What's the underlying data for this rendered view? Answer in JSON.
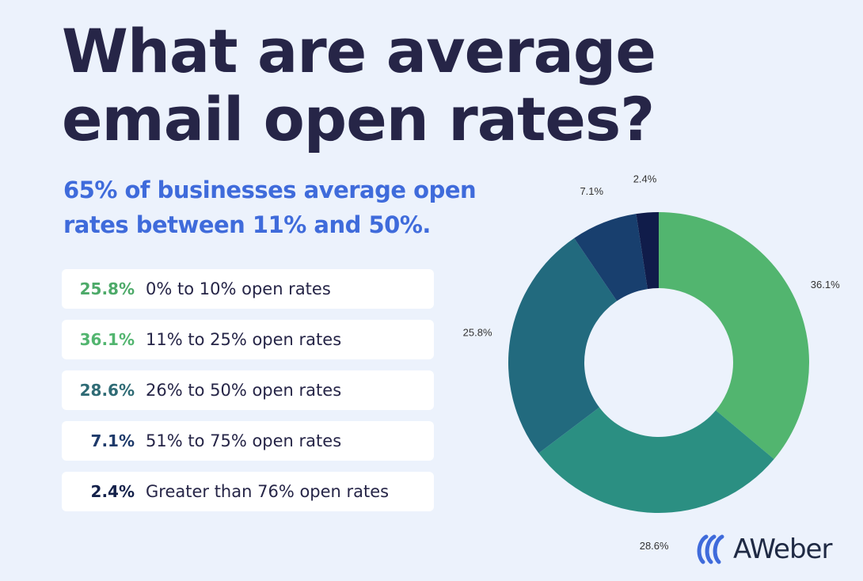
{
  "header": {
    "title": "What are average email open rates?",
    "subtitle": "65% of businesses average open rates between 11% and 50%."
  },
  "legend": [
    {
      "value": "25.8%",
      "label": "0% to 10% open rates",
      "color": "#4daa69"
    },
    {
      "value": "36.1%",
      "label": "11% to 25% open rates",
      "color": "#52b56f"
    },
    {
      "value": "28.6%",
      "label": "26% to 50% open rates",
      "color": "#2f6b75"
    },
    {
      "value": "7.1%",
      "label": "51% to 75% open rates",
      "color": "#1e3a6a"
    },
    {
      "value": "2.4%",
      "label": "Greater than 76% open rates",
      "color": "#14214a"
    }
  ],
  "chart_data": {
    "type": "pie",
    "donut": true,
    "start_angle_deg": 0,
    "direction": "clockwise",
    "slices": [
      {
        "label": "36.1%",
        "value": 36.1,
        "color": "#52b56f"
      },
      {
        "label": "28.6%",
        "value": 28.6,
        "color": "#2b8f82"
      },
      {
        "label": "25.8%",
        "value": 25.8,
        "color": "#226a7e"
      },
      {
        "label": "7.1%",
        "value": 7.1,
        "color": "#183f6e"
      },
      {
        "label": "2.4%",
        "value": 2.4,
        "color": "#101c4a"
      }
    ]
  },
  "logo": {
    "text": "AWeber",
    "icon": "aweber-wave-icon",
    "color": "#1f2a44"
  }
}
